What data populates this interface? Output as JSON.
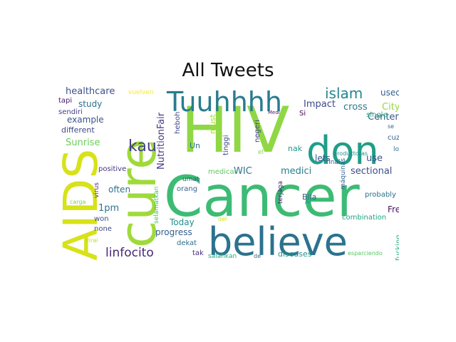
{
  "title": "All Tweets",
  "words": [
    {
      "text": "HIV",
      "color": "#8fd744"
    },
    {
      "text": "Cancer",
      "color": "#3dbb74"
    },
    {
      "text": "cure",
      "color": "#9fda3a"
    },
    {
      "text": "AIDS",
      "color": "#d7e219"
    },
    {
      "text": "believe",
      "color": "#2c728e"
    },
    {
      "text": "don",
      "color": "#1f9e89"
    },
    {
      "text": "Tuuhhhh",
      "color": "#287c8e"
    },
    {
      "text": "islam",
      "color": "#25858e"
    },
    {
      "text": "kau",
      "color": "#433e85"
    },
    {
      "text": "linfocito",
      "color": "#482677"
    },
    {
      "text": "healthcare",
      "color": "#3b528b"
    },
    {
      "text": "NutritionFair",
      "color": "#453882"
    },
    {
      "text": "study",
      "color": "#2d708e"
    },
    {
      "text": "example",
      "color": "#39558c"
    },
    {
      "text": "different",
      "color": "#3e4989"
    },
    {
      "text": "Sunrise",
      "color": "#6ccd5a"
    },
    {
      "text": "sendiri",
      "color": "#424086"
    },
    {
      "text": "tapi",
      "color": "#48186a"
    },
    {
      "text": "vuelven",
      "color": "#fde725"
    },
    {
      "text": "Impact",
      "color": "#3e4a89"
    },
    {
      "text": "cross",
      "color": "#2a788e"
    },
    {
      "text": "City",
      "color": "#95d840"
    },
    {
      "text": "Center",
      "color": "#39568c"
    },
    {
      "text": "used",
      "color": "#365c8d"
    },
    {
      "text": "single",
      "color": "#29af7f"
    },
    {
      "text": "se",
      "color": "#31688e"
    },
    {
      "text": "Si",
      "color": "#440154"
    },
    {
      "text": "Medi",
      "color": "#481a6c"
    },
    {
      "text": "must",
      "color": "#a5db36"
    },
    {
      "text": "heboh",
      "color": "#404688"
    },
    {
      "text": "Un",
      "color": "#2d708e"
    },
    {
      "text": "tinggi",
      "color": "#3f4788"
    },
    {
      "text": "negeri",
      "color": "#433d84"
    },
    {
      "text": "el",
      "color": "#8bd646"
    },
    {
      "text": "nak",
      "color": "#1f9a8a"
    },
    {
      "text": "lets",
      "color": "#3b528b"
    },
    {
      "text": "final",
      "color": "#38588c"
    },
    {
      "text": "use",
      "color": "#3a548c"
    },
    {
      "text": "productoras",
      "color": "#21918c"
    },
    {
      "text": "los",
      "color": "#2a778e"
    },
    {
      "text": "cuz",
      "color": "#33638d"
    },
    {
      "text": "WIC",
      "color": "#2c728e"
    },
    {
      "text": "medici",
      "color": "#277f8e"
    },
    {
      "text": "sectional",
      "color": "#3d4e8a"
    },
    {
      "text": "medicat",
      "color": "#5ec962"
    },
    {
      "text": "positive",
      "color": "#453781"
    },
    {
      "text": "often",
      "color": "#2c728e"
    },
    {
      "text": "virus",
      "color": "#472d7b"
    },
    {
      "text": "carga",
      "color": "#7ad151"
    },
    {
      "text": "selamatkan",
      "color": "#4ac16d"
    },
    {
      "text": "umat",
      "color": "#3a548c"
    },
    {
      "text": "orang",
      "color": "#33638d"
    },
    {
      "text": "Bila",
      "color": "#32648e"
    },
    {
      "text": "Al",
      "color": "#1f988b"
    },
    {
      "text": "terjaga",
      "color": "#482173"
    },
    {
      "text": "máquinas",
      "color": "#31668e"
    },
    {
      "text": "probably",
      "color": "#2d718e"
    },
    {
      "text": "Free",
      "color": "#471365"
    },
    {
      "text": "1pm",
      "color": "#2b758e"
    },
    {
      "text": "won",
      "color": "#3c4f8a"
    },
    {
      "text": "none",
      "color": "#3f4889"
    },
    {
      "text": "virai",
      "color": "#b8de29"
    },
    {
      "text": "Today",
      "color": "#21908d"
    },
    {
      "text": "progress",
      "color": "#365d8d"
    },
    {
      "text": "dekat",
      "color": "#2e6e8e"
    },
    {
      "text": "tak",
      "color": "#472f7d"
    },
    {
      "text": "del",
      "color": "#d2e21b"
    },
    {
      "text": "combination",
      "color": "#20a486"
    },
    {
      "text": "fucking",
      "color": "#2ab07f"
    },
    {
      "text": "salahkan",
      "color": "#22a785"
    },
    {
      "text": "de",
      "color": "#2e6f8e"
    },
    {
      "text": "diseases",
      "color": "#20928c"
    },
    {
      "text": "esparciendo",
      "color": "#58c765"
    }
  ]
}
